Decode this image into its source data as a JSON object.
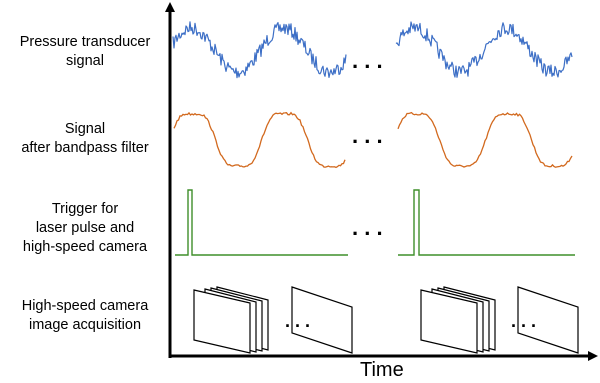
{
  "rows": [
    {
      "lines": [
        "Pressure transducer",
        "signal"
      ]
    },
    {
      "lines": [
        "Signal",
        "after bandpass filter"
      ]
    },
    {
      "lines": [
        "Trigger for",
        "laser pulse and",
        "high-speed camera"
      ]
    },
    {
      "lines": [
        "High-speed camera",
        "image acquisition"
      ]
    }
  ],
  "x_axis_label": "Time",
  "ellipsis": ". . .",
  "colors": {
    "raw_signal": "#3d6fc6",
    "filtered_signal": "#d2691e",
    "trigger": "#3f8f2a",
    "axis": "#000000"
  }
}
